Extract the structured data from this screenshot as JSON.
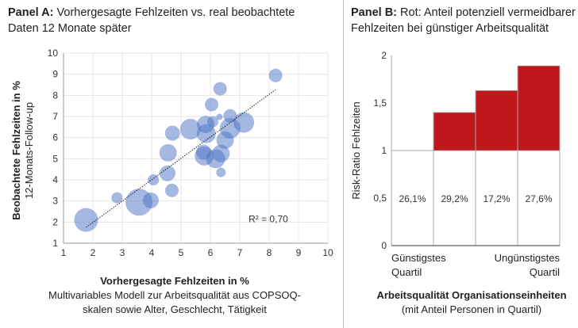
{
  "panel_a": {
    "title_bold": "Panel A:",
    "title_rest": " Vorhergesagte Fehlzeiten vs. real beobachtete",
    "title_line2": "Daten 12 Monate später",
    "xlabel_bold": "Vorhergesagte Fehlzeiten in %",
    "xlabel_line2": "Multivariables Modell zur Arbeitsqualität aus COPSOQ-",
    "xlabel_line3": "skalen sowie Alter, Geschlecht, Tätigkeit",
    "ylabel_bold": "Beobachtete Fehlzeiten in %",
    "ylabel_line2": "12-Monats-Follow-up",
    "r2_label": "R² = 0,70"
  },
  "panel_b": {
    "title_bold": "Panel B:",
    "title_rest": " Rot: Anteil potenziell vermeidbarer",
    "title_line2": "Fehlzeiten bei günstiger Arbeitsqualität",
    "ylabel": "Risk-Ratio Fehlzeiten",
    "left_label_1": "Günstigstes",
    "left_label_2": "Quartil",
    "right_label_1": "Ungünstigstes",
    "right_label_2": "Quartil",
    "xlabel_bold": "Arbeitsqualität Organisationseinheiten",
    "xlabel_line2": "(mit Anteil Personen in Quartil)"
  },
  "chart_data": [
    {
      "type": "scatter",
      "title": "Vorhergesagte Fehlzeiten vs. real beobachtete Daten 12 Monate später",
      "xlabel": "Vorhergesagte Fehlzeiten in %",
      "ylabel": "Beobachtete Fehlzeiten in %",
      "xlim": [
        1,
        10
      ],
      "ylim": [
        1,
        10
      ],
      "xticks": [
        "1",
        "2",
        "3",
        "4",
        "5",
        "6",
        "7",
        "8",
        "9",
        "10"
      ],
      "yticks": [
        "1",
        "2",
        "3",
        "4",
        "5",
        "6",
        "7",
        "8",
        "9",
        "10"
      ],
      "grid": true,
      "color": "#4a72c4",
      "points": [
        {
          "x": 1.77,
          "y": 2.1,
          "size": 15
        },
        {
          "x": 2.82,
          "y": 3.15,
          "size": 7
        },
        {
          "x": 3.57,
          "y": 2.94,
          "size": 17
        },
        {
          "x": 3.97,
          "y": 3.03,
          "size": 10
        },
        {
          "x": 4.06,
          "y": 4.0,
          "size": 7
        },
        {
          "x": 4.54,
          "y": 4.31,
          "size": 10
        },
        {
          "x": 4.69,
          "y": 3.5,
          "size": 8.5
        },
        {
          "x": 4.56,
          "y": 5.28,
          "size": 11
        },
        {
          "x": 4.71,
          "y": 6.21,
          "size": 9.5
        },
        {
          "x": 5.32,
          "y": 6.4,
          "size": 13
        },
        {
          "x": 5.84,
          "y": 6.62,
          "size": 11
        },
        {
          "x": 5.86,
          "y": 6.19,
          "size": 12
        },
        {
          "x": 6.04,
          "y": 7.56,
          "size": 8.5
        },
        {
          "x": 6.33,
          "y": 8.31,
          "size": 8.5
        },
        {
          "x": 6.31,
          "y": 6.98,
          "size": 4
        },
        {
          "x": 6.08,
          "y": 6.75,
          "size": 7
        },
        {
          "x": 6.67,
          "y": 7.03,
          "size": 8.5
        },
        {
          "x": 7.14,
          "y": 6.72,
          "size": 13
        },
        {
          "x": 6.67,
          "y": 6.44,
          "size": 13
        },
        {
          "x": 6.5,
          "y": 5.88,
          "size": 11
        },
        {
          "x": 5.79,
          "y": 5.13,
          "size": 12
        },
        {
          "x": 6.18,
          "y": 5.0,
          "size": 12
        },
        {
          "x": 6.36,
          "y": 5.25,
          "size": 11
        },
        {
          "x": 6.36,
          "y": 4.35,
          "size": 6
        },
        {
          "x": 8.22,
          "y": 8.94,
          "size": 8.5
        },
        {
          "x": 5.77,
          "y": 5.31,
          "size": 9.5
        }
      ],
      "trendline": {
        "x": [
          1.77,
          8.22
        ],
        "y": [
          1.75,
          8.27
        ]
      },
      "annotation": "R² = 0,70"
    },
    {
      "type": "bar",
      "title": "Rot: Anteil potenziell vermeidbarer Fehlzeiten bei günstiger Arbeitsqualität",
      "ylabel": "Risk-Ratio Fehlzeiten",
      "xlabel": "Arbeitsqualität Organisationseinheiten",
      "ylim": [
        0,
        2
      ],
      "yticks": [
        "0",
        "0,5",
        "1",
        "1,5",
        "2"
      ],
      "yticks_values": [
        0,
        0.5,
        1,
        1.5,
        2
      ],
      "baseline": 1,
      "values": [
        1.0,
        1.4,
        1.63,
        1.89
      ],
      "data_labels": [
        "26,1%",
        "29,2%",
        "17,2%",
        "27,6%"
      ],
      "color": "#c0171b"
    }
  ]
}
